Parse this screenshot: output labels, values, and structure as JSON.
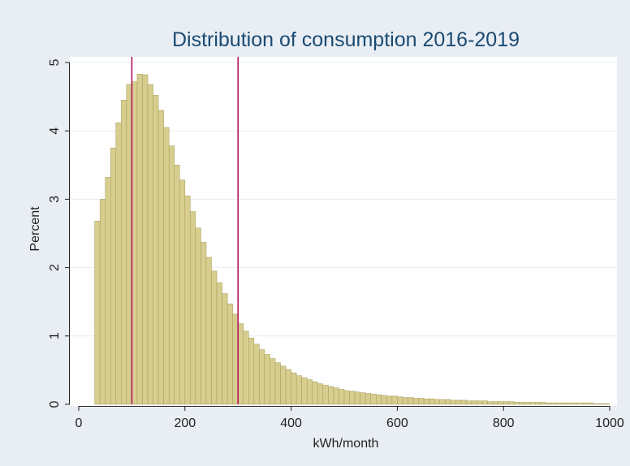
{
  "chart_data": {
    "type": "bar",
    "title": "Distribution of consumption 2016-2019",
    "xlabel": "kWh/month",
    "ylabel": "Percent",
    "xlim": [
      0,
      1000
    ],
    "ylim": [
      0,
      5
    ],
    "x_ticks": [
      0,
      200,
      400,
      600,
      800,
      1000
    ],
    "y_ticks": [
      0,
      1,
      2,
      3,
      4,
      5
    ],
    "bin_width": 10,
    "bin_starts": [
      30,
      40,
      50,
      60,
      70,
      80,
      90,
      100,
      110,
      120,
      130,
      140,
      150,
      160,
      170,
      180,
      190,
      200,
      210,
      220,
      230,
      240,
      250,
      260,
      270,
      280,
      290,
      300,
      310,
      320,
      330,
      340,
      350,
      360,
      370,
      380,
      390,
      400,
      410,
      420,
      430,
      440,
      450,
      460,
      470,
      480,
      490,
      500,
      510,
      520,
      530,
      540,
      550,
      560,
      570,
      580,
      590,
      600,
      610,
      620,
      630,
      640,
      650,
      660,
      670,
      680,
      690,
      700,
      710,
      720,
      730,
      740,
      750,
      760,
      770,
      780,
      790,
      800,
      810,
      820,
      830,
      840,
      850,
      860,
      870,
      880,
      890,
      900,
      910,
      920,
      930,
      940,
      950,
      960,
      970,
      980,
      990
    ],
    "values": [
      2.68,
      3.0,
      3.32,
      3.75,
      4.12,
      4.45,
      4.68,
      4.72,
      4.83,
      4.82,
      4.68,
      4.52,
      4.3,
      4.05,
      3.78,
      3.5,
      3.28,
      3.05,
      2.82,
      2.58,
      2.37,
      2.15,
      1.95,
      1.78,
      1.62,
      1.47,
      1.32,
      1.18,
      1.07,
      0.97,
      0.88,
      0.8,
      0.73,
      0.67,
      0.61,
      0.56,
      0.51,
      0.46,
      0.42,
      0.39,
      0.36,
      0.33,
      0.3,
      0.28,
      0.26,
      0.24,
      0.22,
      0.2,
      0.19,
      0.18,
      0.17,
      0.16,
      0.15,
      0.14,
      0.13,
      0.12,
      0.12,
      0.11,
      0.1,
      0.1,
      0.09,
      0.09,
      0.08,
      0.08,
      0.07,
      0.07,
      0.07,
      0.06,
      0.06,
      0.06,
      0.05,
      0.05,
      0.05,
      0.05,
      0.04,
      0.04,
      0.04,
      0.04,
      0.04,
      0.03,
      0.03,
      0.03,
      0.03,
      0.03,
      0.03,
      0.02,
      0.02,
      0.02,
      0.02,
      0.02,
      0.02,
      0.02,
      0.02,
      0.02,
      0.01,
      0.01,
      0.01
    ],
    "reference_lines_x": [
      100,
      300
    ],
    "grid": true,
    "legend": "none",
    "colors": {
      "bar_fill": "#d7cd8e",
      "bar_stroke": "#a59a58",
      "reference_line": "#b0185a",
      "plot_background": "#ffffff",
      "outer_background": "#e8eef3",
      "title": "#1a4a72",
      "gridline": "#e6ecf0",
      "axis": "#222222"
    }
  }
}
